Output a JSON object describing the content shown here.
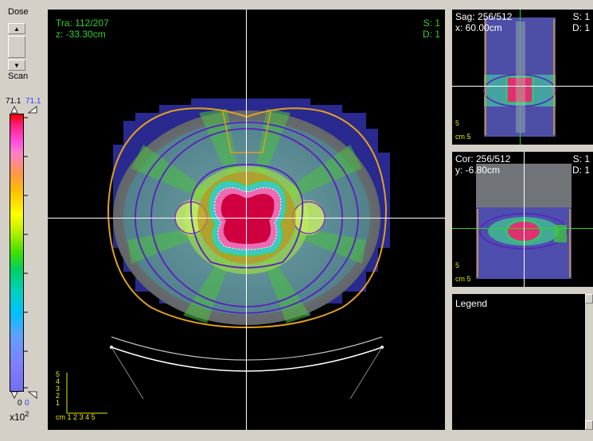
{
  "dose_panel": {
    "title": "Dose",
    "scan_label": "Scan",
    "max_left": "71.1",
    "max_right": "71.1",
    "min_left": "0",
    "min_right": "0",
    "unit": "x10",
    "unit_exp": "2",
    "slider_level": 0.5
  },
  "main_view": {
    "slice_label": "Tra: 112/207",
    "z_label": "z: -33.30cm",
    "s_label": "S: 1",
    "d_label": "D: 1",
    "scale_numbers": [
      "1",
      "2",
      "3",
      "4",
      "5"
    ],
    "scale_unit": "cm"
  },
  "sag_view": {
    "slice_label": "Sag: 256/512",
    "coord_label": "x: 60.00cm",
    "s_label": "S: 1",
    "d_label": "D: 1",
    "scale_number": "5",
    "scale_unit": "cm 5"
  },
  "cor_view": {
    "slice_label": "Cor: 256/512",
    "coord_label": "y: -6.80cm",
    "s_label": "S: 1",
    "d_label": "D: 1",
    "scale_number": "5",
    "scale_unit": "cm 5"
  },
  "legend": {
    "title": "Legend"
  },
  "colors": {
    "overlay_green": "#2fd12f",
    "crosshair": "#ffffff",
    "contour_orange": "#e0a020",
    "contour_purple": "#5a1fc0",
    "scale_yellow": "#e8e800"
  },
  "icons": [
    "arrow-up-icon",
    "arrow-down-icon",
    "triangle-marker-icon"
  ]
}
